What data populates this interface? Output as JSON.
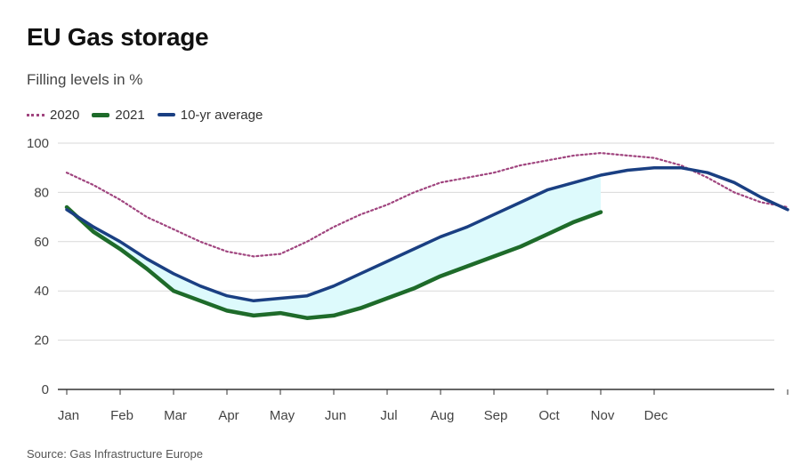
{
  "header": {
    "title": "EU Gas storage",
    "subtitle": "Filling levels in %",
    "source": "Source: Gas Infrastructure Europe"
  },
  "legend": [
    {
      "label": "2020",
      "style": "dotted",
      "color": "#a0457f"
    },
    {
      "label": "2021",
      "style": "solid",
      "color": "#1e6b2a"
    },
    {
      "label": "10-yr average",
      "style": "solid",
      "color": "#1a3f82"
    }
  ],
  "colors": {
    "series_2020": "#a0457f",
    "series_2021": "#1e6b2a",
    "series_avg": "#1a3f82",
    "gap_fill": "#ddfafc",
    "grid": "#d9d9d9",
    "axis": "#333333"
  },
  "chart_data": {
    "type": "line",
    "title": "EU Gas storage",
    "subtitle": "Filling levels in %",
    "xlabel": "",
    "ylabel": "",
    "ylim": [
      0,
      100
    ],
    "yticks": [
      0,
      20,
      40,
      60,
      80,
      100
    ],
    "xticks": [
      "Jan",
      "Feb",
      "Mar",
      "Apr",
      "May",
      "Jun",
      "Jul",
      "Aug",
      "Sep",
      "Oct",
      "Nov",
      "Dec"
    ],
    "x_unit": "month (0 = start of Jan, 12 = end of Dec)",
    "grid": true,
    "legend_position": "top-left",
    "shaded_area": "gap between 10-yr average and 2021",
    "series": [
      {
        "name": "2020",
        "style": "dotted",
        "points": [
          [
            0,
            88
          ],
          [
            0.5,
            83
          ],
          [
            1,
            77
          ],
          [
            1.5,
            70
          ],
          [
            2,
            65
          ],
          [
            2.5,
            60
          ],
          [
            3,
            56
          ],
          [
            3.5,
            54
          ],
          [
            4,
            55
          ],
          [
            4.5,
            60
          ],
          [
            5,
            66
          ],
          [
            5.5,
            71
          ],
          [
            6,
            75
          ],
          [
            6.5,
            80
          ],
          [
            7,
            84
          ],
          [
            7.5,
            86
          ],
          [
            8,
            88
          ],
          [
            8.5,
            91
          ],
          [
            9,
            93
          ],
          [
            9.5,
            95
          ],
          [
            10,
            96
          ],
          [
            10.5,
            95
          ],
          [
            11,
            94
          ],
          [
            11.5,
            91
          ],
          [
            12,
            86
          ],
          [
            12.5,
            80
          ],
          [
            13,
            76
          ],
          [
            13.5,
            74
          ]
        ]
      },
      {
        "name": "2021",
        "style": "solid",
        "points": [
          [
            0,
            74
          ],
          [
            0.5,
            64
          ],
          [
            1,
            57
          ],
          [
            1.5,
            49
          ],
          [
            2,
            40
          ],
          [
            2.5,
            36
          ],
          [
            3,
            32
          ],
          [
            3.5,
            30
          ],
          [
            4,
            31
          ],
          [
            4.5,
            29
          ],
          [
            5,
            30
          ],
          [
            5.5,
            33
          ],
          [
            6,
            37
          ],
          [
            6.5,
            41
          ],
          [
            7,
            46
          ],
          [
            7.5,
            50
          ],
          [
            8,
            54
          ],
          [
            8.5,
            58
          ],
          [
            9,
            63
          ],
          [
            9.5,
            68
          ],
          [
            10,
            72
          ]
        ]
      },
      {
        "name": "10-yr average",
        "style": "solid",
        "points": [
          [
            0,
            73
          ],
          [
            0.5,
            66
          ],
          [
            1,
            60
          ],
          [
            1.5,
            53
          ],
          [
            2,
            47
          ],
          [
            2.5,
            42
          ],
          [
            3,
            38
          ],
          [
            3.5,
            36
          ],
          [
            4,
            37
          ],
          [
            4.5,
            38
          ],
          [
            5,
            42
          ],
          [
            5.5,
            47
          ],
          [
            6,
            52
          ],
          [
            6.5,
            57
          ],
          [
            7,
            62
          ],
          [
            7.5,
            66
          ],
          [
            8,
            71
          ],
          [
            8.5,
            76
          ],
          [
            9,
            81
          ],
          [
            9.5,
            84
          ],
          [
            10,
            87
          ],
          [
            10.5,
            89
          ],
          [
            11,
            90
          ],
          [
            11.5,
            90
          ],
          [
            12,
            88
          ],
          [
            12.5,
            84
          ],
          [
            13,
            78
          ],
          [
            13.5,
            73
          ]
        ]
      }
    ]
  }
}
